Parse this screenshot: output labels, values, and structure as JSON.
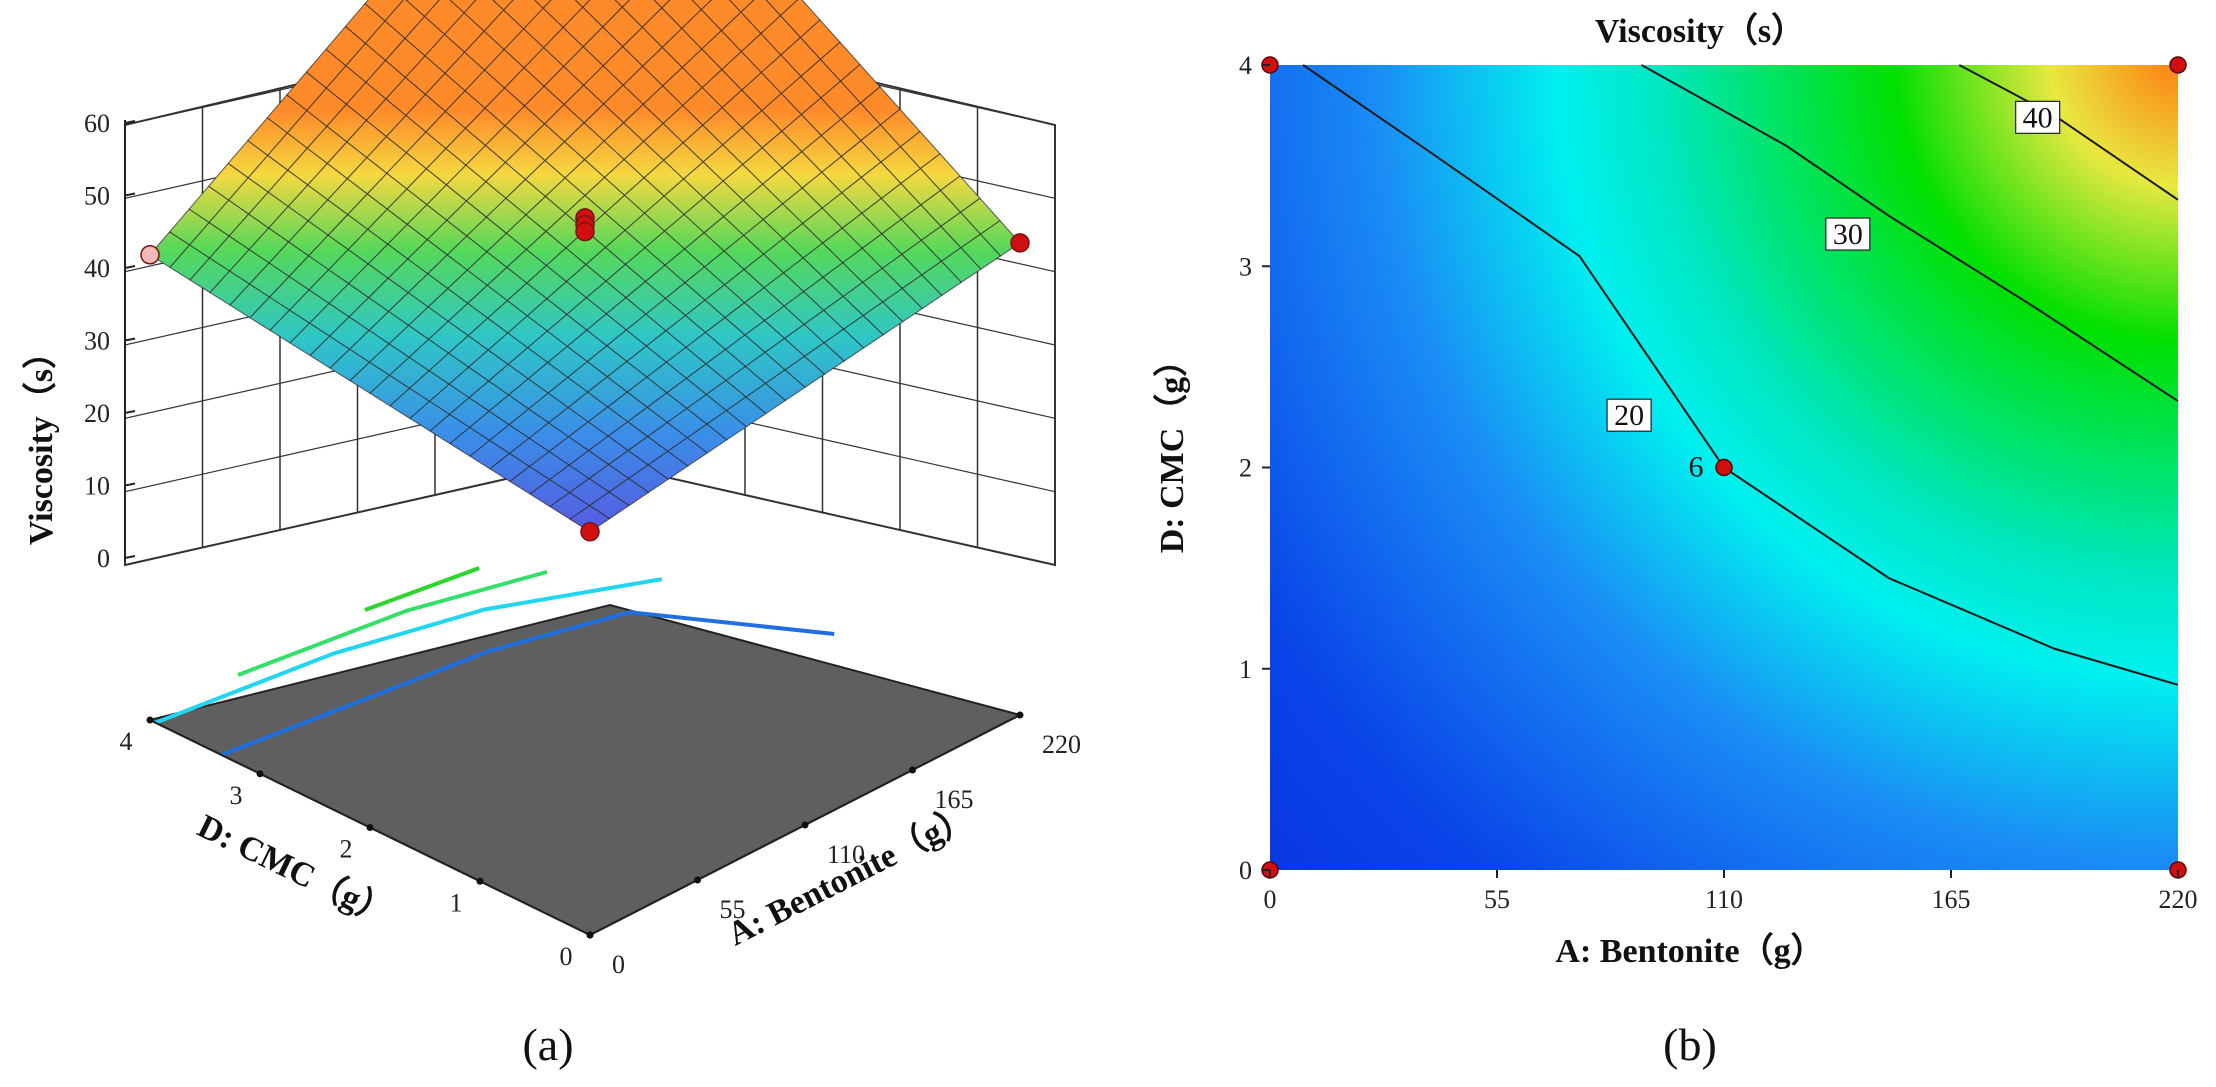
{
  "figure": {
    "panel_a": "(a)",
    "panel_b": "(b)"
  },
  "chart_data": [
    {
      "type": "surface3d",
      "title": "",
      "xlabel": "A: Bentonite（g）",
      "ylabel": "D: CMC（g）",
      "zlabel": "Viscosity（s）",
      "x_ticks": [
        "0",
        "55",
        "110",
        "165",
        "220"
      ],
      "y_ticks": [
        "0",
        "1",
        "2",
        "3",
        "4"
      ],
      "z_ticks": [
        "0",
        "10",
        "20",
        "30",
        "40",
        "50",
        "60"
      ],
      "xlim": [
        0,
        220
      ],
      "ylim": [
        0,
        4
      ],
      "zlim": [
        0,
        60
      ],
      "grid": true,
      "surface_corners": [
        {
          "x": 0,
          "y": 0,
          "z": 7
        },
        {
          "x": 220,
          "y": 0,
          "z": 17
        },
        {
          "x": 0,
          "y": 4,
          "z": 16
        },
        {
          "x": 220,
          "y": 4,
          "z": 57
        }
      ],
      "design_points": [
        {
          "x": 0,
          "y": 0,
          "z": 7
        },
        {
          "x": 220,
          "y": 0,
          "z": 17
        },
        {
          "x": 0,
          "y": 4,
          "z": 16
        },
        {
          "x": 220,
          "y": 4,
          "z": 57
        },
        {
          "x": 110,
          "y": 2,
          "z": 21
        },
        {
          "x": 110,
          "y": 2,
          "z": 20
        },
        {
          "x": 110,
          "y": 2,
          "z": 19
        }
      ],
      "floor_contours": [
        20,
        30,
        40,
        50
      ],
      "floor_contour_colors": [
        "#1f6fe0",
        "#22d5f0",
        "#35e06a",
        "#2cd62c"
      ],
      "floor_color": "#5f5f5f"
    },
    {
      "type": "contour",
      "title": "Viscosity（s）",
      "xlabel": "A: Bentonite（g）",
      "ylabel": "D: CMC（g）",
      "x_ticks": [
        "0",
        "55",
        "110",
        "165",
        "220"
      ],
      "y_ticks": [
        "0",
        "1",
        "2",
        "3",
        "4"
      ],
      "xlim": [
        0,
        220
      ],
      "ylim": [
        0,
        4
      ],
      "contour_labels": [
        "20",
        "30",
        "40"
      ],
      "contour_levels": [
        20,
        30,
        40
      ],
      "center_point": {
        "x": 110,
        "y": 2,
        "label": "6"
      },
      "design_points": [
        {
          "x": 0,
          "y": 0
        },
        {
          "x": 220,
          "y": 0
        },
        {
          "x": 0,
          "y": 4
        },
        {
          "x": 220,
          "y": 4
        },
        {
          "x": 110,
          "y": 2
        }
      ],
      "colorscale": [
        "#0a2fe0",
        "#1a8cf5",
        "#00f0f0",
        "#00e000",
        "#e8e840",
        "#ff7a10"
      ]
    }
  ]
}
